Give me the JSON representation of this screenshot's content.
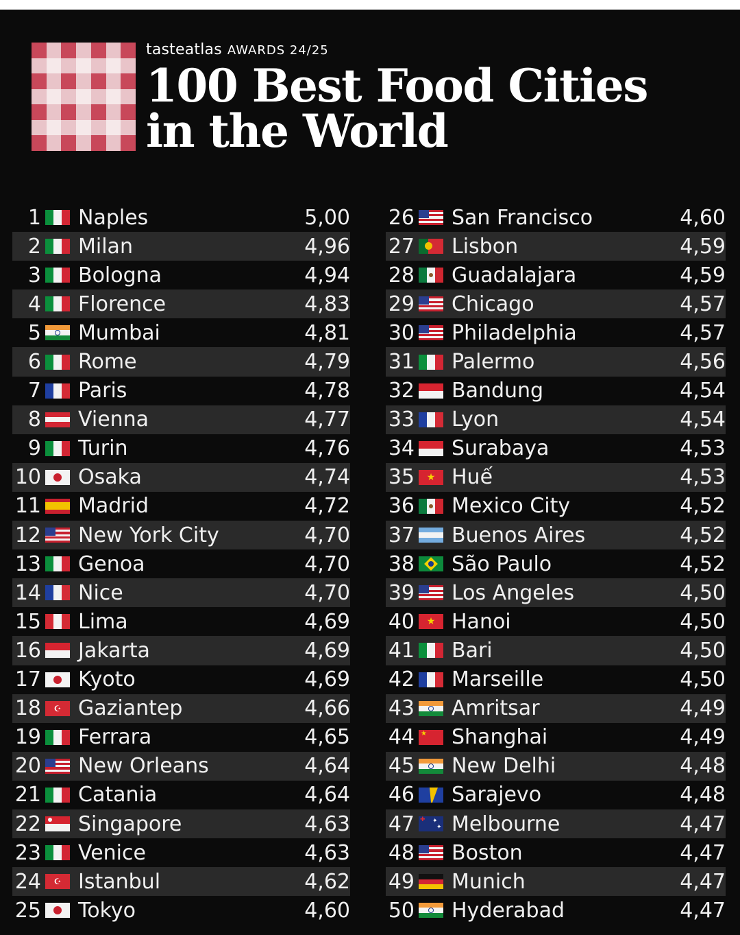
{
  "header": {
    "brand_name": "tasteatlas",
    "brand_sub": "AWARDS 24/25",
    "title_line1": "100 Best Food Cities",
    "title_line2": "in the World"
  },
  "colors": {
    "checker_red": "#c8485a",
    "checker_light": "#e9c4c9",
    "row_alt": "#2a2a2a",
    "background": "#0b0b0b"
  },
  "left_column": [
    {
      "rank": "1",
      "flag": "italy",
      "city": "Naples",
      "score": "5,00"
    },
    {
      "rank": "2",
      "flag": "italy",
      "city": "Milan",
      "score": "4,96"
    },
    {
      "rank": "3",
      "flag": "italy",
      "city": "Bologna",
      "score": "4,94"
    },
    {
      "rank": "4",
      "flag": "italy",
      "city": "Florence",
      "score": "4,83"
    },
    {
      "rank": "5",
      "flag": "india",
      "city": "Mumbai",
      "score": "4,81"
    },
    {
      "rank": "6",
      "flag": "italy",
      "city": "Rome",
      "score": "4,79"
    },
    {
      "rank": "7",
      "flag": "france",
      "city": "Paris",
      "score": "4,78"
    },
    {
      "rank": "8",
      "flag": "austria",
      "city": "Vienna",
      "score": "4,77"
    },
    {
      "rank": "9",
      "flag": "italy",
      "city": "Turin",
      "score": "4,76"
    },
    {
      "rank": "10",
      "flag": "japan",
      "city": "Osaka",
      "score": "4,74"
    },
    {
      "rank": "11",
      "flag": "spain",
      "city": "Madrid",
      "score": "4,72"
    },
    {
      "rank": "12",
      "flag": "usa",
      "city": "New York City",
      "score": "4,70"
    },
    {
      "rank": "13",
      "flag": "italy",
      "city": "Genoa",
      "score": "4,70"
    },
    {
      "rank": "14",
      "flag": "france",
      "city": "Nice",
      "score": "4,70"
    },
    {
      "rank": "15",
      "flag": "peru",
      "city": "Lima",
      "score": "4,69"
    },
    {
      "rank": "16",
      "flag": "indonesia",
      "city": "Jakarta",
      "score": "4,69"
    },
    {
      "rank": "17",
      "flag": "japan",
      "city": "Kyoto",
      "score": "4,69"
    },
    {
      "rank": "18",
      "flag": "turkey",
      "city": "Gaziantep",
      "score": "4,66"
    },
    {
      "rank": "19",
      "flag": "italy",
      "city": "Ferrara",
      "score": "4,65"
    },
    {
      "rank": "20",
      "flag": "usa",
      "city": "New Orleans",
      "score": "4,64"
    },
    {
      "rank": "21",
      "flag": "italy",
      "city": "Catania",
      "score": "4,64"
    },
    {
      "rank": "22",
      "flag": "singapore",
      "city": "Singapore",
      "score": "4,63"
    },
    {
      "rank": "23",
      "flag": "italy",
      "city": "Venice",
      "score": "4,63"
    },
    {
      "rank": "24",
      "flag": "turkey",
      "city": "Istanbul",
      "score": "4,62"
    },
    {
      "rank": "25",
      "flag": "japan",
      "city": "Tokyo",
      "score": "4,60"
    }
  ],
  "right_column": [
    {
      "rank": "26",
      "flag": "usa",
      "city": "San Francisco",
      "score": "4,60"
    },
    {
      "rank": "27",
      "flag": "portugal",
      "city": "Lisbon",
      "score": "4,59"
    },
    {
      "rank": "28",
      "flag": "mexico",
      "city": "Guadalajara",
      "score": "4,59"
    },
    {
      "rank": "29",
      "flag": "usa",
      "city": "Chicago",
      "score": "4,57"
    },
    {
      "rank": "30",
      "flag": "usa",
      "city": "Philadelphia",
      "score": "4,57"
    },
    {
      "rank": "31",
      "flag": "italy",
      "city": "Palermo",
      "score": "4,56"
    },
    {
      "rank": "32",
      "flag": "indonesia",
      "city": "Bandung",
      "score": "4,54"
    },
    {
      "rank": "33",
      "flag": "france",
      "city": "Lyon",
      "score": "4,54"
    },
    {
      "rank": "34",
      "flag": "indonesia",
      "city": "Surabaya",
      "score": "4,53"
    },
    {
      "rank": "35",
      "flag": "vietnam",
      "city": "Huế",
      "score": "4,53"
    },
    {
      "rank": "36",
      "flag": "mexico",
      "city": "Mexico City",
      "score": "4,52"
    },
    {
      "rank": "37",
      "flag": "argentina",
      "city": "Buenos Aires",
      "score": "4,52"
    },
    {
      "rank": "38",
      "flag": "brazil",
      "city": "São Paulo",
      "score": "4,52"
    },
    {
      "rank": "39",
      "flag": "usa",
      "city": "Los Angeles",
      "score": "4,50"
    },
    {
      "rank": "40",
      "flag": "vietnam",
      "city": "Hanoi",
      "score": "4,50"
    },
    {
      "rank": "41",
      "flag": "italy",
      "city": "Bari",
      "score": "4,50"
    },
    {
      "rank": "42",
      "flag": "france",
      "city": "Marseille",
      "score": "4,50"
    },
    {
      "rank": "43",
      "flag": "india",
      "city": "Amritsar",
      "score": "4,49"
    },
    {
      "rank": "44",
      "flag": "china",
      "city": "Shanghai",
      "score": "4,49"
    },
    {
      "rank": "45",
      "flag": "india",
      "city": "New Delhi",
      "score": "4,48"
    },
    {
      "rank": "46",
      "flag": "bosnia",
      "city": "Sarajevo",
      "score": "4,48"
    },
    {
      "rank": "47",
      "flag": "australia",
      "city": "Melbourne",
      "score": "4,47"
    },
    {
      "rank": "48",
      "flag": "usa",
      "city": "Boston",
      "score": "4,47"
    },
    {
      "rank": "49",
      "flag": "germany",
      "city": "Munich",
      "score": "4,47"
    },
    {
      "rank": "50",
      "flag": "india",
      "city": "Hyderabad",
      "score": "4,47"
    }
  ]
}
